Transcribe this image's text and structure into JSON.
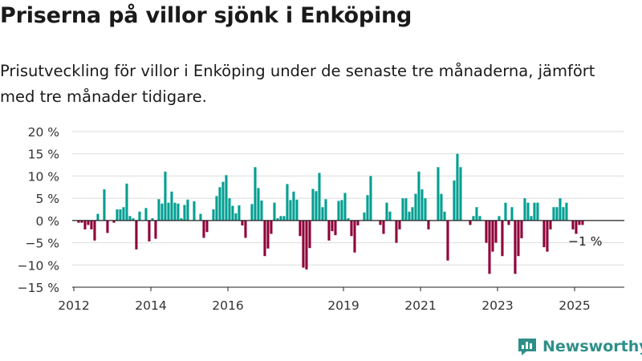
{
  "header": {
    "title": "Priserna på villor sjönk i Enköping",
    "subtitle": "Prisutveckling för villor i Enköping under de senaste tre månaderna, jämfört med tre månader tidigare."
  },
  "brand": {
    "name": "Newsworthy"
  },
  "colors": {
    "positive": "#009f92",
    "negative": "#8f0039",
    "brand": "#2e8f89"
  },
  "chart_data": {
    "type": "bar",
    "y_unit": "%",
    "ylim": [
      -15,
      20
    ],
    "y_ticks": [
      -15,
      -10,
      -5,
      0,
      5,
      10,
      15,
      20
    ],
    "y_tick_labels": [
      "−15 %",
      "−10 %",
      "−5 %",
      "0 %",
      "5 %",
      "10 %",
      "15 %",
      "20 %"
    ],
    "x_tick_labels": [
      "2012",
      "2014",
      "2016",
      "2019",
      "2021",
      "2023",
      "2025"
    ],
    "x_tick_dates": [
      "2012-01",
      "2014-01",
      "2016-01",
      "2019-01",
      "2021-01",
      "2023-01",
      "2025-01"
    ],
    "grid": true,
    "last_label": "−1 %",
    "series": [
      {
        "start": "2012-01",
        "frequency": "monthly",
        "values": [
          0,
          -0.5,
          -0.5,
          -2,
          -1,
          -2,
          -4.5,
          1.5,
          0,
          7,
          -2.8,
          0,
          -0.5,
          2.5,
          2.5,
          3,
          8.3,
          1,
          0.5,
          -6.5,
          2,
          0,
          2.8,
          -4.7,
          0.5,
          -4.1,
          4.8,
          3.8,
          11,
          4,
          6.5,
          4,
          3.8,
          0.5,
          3.5,
          4.7,
          0,
          4.3,
          0,
          1.5,
          -3.9,
          -2.6,
          0,
          2.5,
          5.5,
          7.5,
          8.7,
          10.2,
          5,
          3.3,
          1.6,
          3.4,
          -1.1,
          -3.9,
          0,
          3.7,
          12,
          7.3,
          4.5,
          -8,
          -6.3,
          -3,
          4,
          0.5,
          1,
          1,
          8.2,
          4.6,
          6.5,
          4.7,
          -3.5,
          -10.6,
          -11,
          -6.2,
          7.1,
          6.6,
          10.7,
          3,
          4.8,
          -4.5,
          -2.4,
          -3.3,
          4.4,
          4.6,
          6.2,
          0.5,
          -3.5,
          -7.2,
          -1.1,
          0,
          1.8,
          5.7,
          10,
          0,
          0,
          -1,
          -3,
          4,
          2,
          0,
          -5,
          -2,
          5,
          5,
          2,
          3,
          6,
          11,
          7,
          5,
          -2,
          0,
          0,
          12,
          6,
          2,
          -9,
          0,
          9,
          15,
          12,
          0,
          0,
          -1,
          1,
          3,
          1,
          0,
          -5,
          -12,
          -7,
          -5,
          1,
          -8,
          4,
          -1,
          3,
          -12,
          -8,
          -4,
          5,
          4,
          1,
          4,
          4,
          0,
          -6,
          -7,
          -2,
          3,
          3,
          5,
          3,
          4,
          0,
          -2,
          -3,
          -1,
          -1
        ]
      }
    ]
  }
}
